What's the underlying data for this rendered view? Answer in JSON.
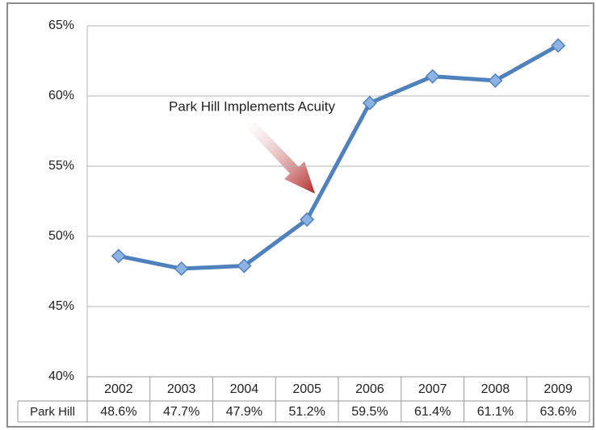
{
  "chart_data": {
    "type": "line",
    "annotation": "Park Hill Implements Acuity",
    "categories": [
      "2002",
      "2003",
      "2004",
      "2005",
      "2006",
      "2007",
      "2008",
      "2009"
    ],
    "series": [
      {
        "name": "Park Hill",
        "color": "#4f81bd",
        "values": [
          48.6,
          47.7,
          47.9,
          51.2,
          59.5,
          61.4,
          61.1,
          63.6
        ],
        "value_labels": [
          "48.6%",
          "47.7%",
          "47.9%",
          "51.2%",
          "59.5%",
          "61.4%",
          "61.1%",
          "63.6%"
        ]
      }
    ],
    "ylim": [
      40,
      65
    ],
    "yticks": [
      {
        "value": 40,
        "label": "40%"
      },
      {
        "value": 45,
        "label": "45%"
      },
      {
        "value": 50,
        "label": "50%"
      },
      {
        "value": 55,
        "label": "55%"
      },
      {
        "value": 60,
        "label": "60%"
      },
      {
        "value": 65,
        "label": "65%"
      }
    ],
    "grid": true
  }
}
